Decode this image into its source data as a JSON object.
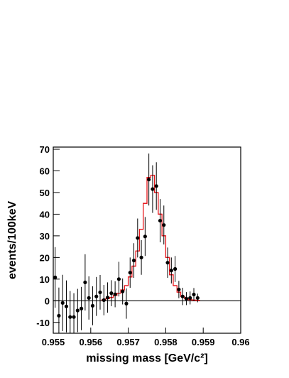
{
  "chart_data": {
    "type": "scatter",
    "x_label": "missing mass [GeV/c²]",
    "y_label": "events/100keV",
    "xlim": [
      0.955,
      0.96
    ],
    "xticks": [
      0.955,
      0.956,
      0.957,
      0.958,
      0.959,
      0.96
    ],
    "ylim": [
      -15,
      71
    ],
    "yticks": [
      -10,
      0,
      10,
      20,
      30,
      40,
      50,
      60,
      70
    ],
    "reference_line": 0,
    "points": {
      "color": "#000000",
      "x": [
        0.95505,
        0.95515,
        0.95525,
        0.95535,
        0.95545,
        0.95555,
        0.95565,
        0.95575,
        0.95585,
        0.95595,
        0.95605,
        0.95615,
        0.95625,
        0.95635,
        0.95645,
        0.95655,
        0.95665,
        0.95675,
        0.95685,
        0.95695,
        0.95705,
        0.95715,
        0.95725,
        0.95735,
        0.95745,
        0.95755,
        0.95765,
        0.95775,
        0.95785,
        0.95795,
        0.95805,
        0.95815,
        0.95825,
        0.95835,
        0.95845,
        0.95855,
        0.95865,
        0.95875,
        0.95885
      ],
      "values": [
        10.8,
        -6.9,
        -1,
        -2.6,
        -7.5,
        -7.5,
        -4.5,
        -3.6,
        8.5,
        1.3,
        -2.3,
        2,
        3.9,
        0.3,
        1.5,
        3.5,
        3,
        10,
        4.3,
        -1.3,
        13,
        18.6,
        29,
        20,
        29.7,
        56,
        51.6,
        53,
        37,
        35,
        17.6,
        14,
        14.7,
        5.2,
        2,
        1,
        1.3,
        2.9,
        1.3
      ],
      "errors": [
        14,
        13,
        13,
        12,
        12,
        11,
        10,
        10,
        13,
        10,
        9,
        9,
        8,
        7,
        7,
        6,
        6,
        8,
        6,
        7,
        7,
        8,
        9,
        8,
        9,
        12,
        11,
        11,
        10,
        9,
        7,
        6,
        6,
        4,
        4,
        3,
        3,
        3,
        2
      ]
    },
    "model": {
      "color": "#e8171c",
      "bins": [
        0.9563,
        0.9564,
        0.9565,
        0.9566,
        0.9567,
        0.9568,
        0.9569,
        0.957,
        0.9571,
        0.9572,
        0.9573,
        0.9574,
        0.9575,
        0.9576,
        0.9577,
        0.9578,
        0.9579,
        0.958,
        0.9581,
        0.9582,
        0.9583,
        0.9584,
        0.9585,
        0.9586,
        0.9587,
        0.9588,
        0.9589
      ],
      "counts": [
        0.5,
        1,
        1.5,
        2.5,
        3.5,
        5,
        7,
        11,
        16,
        23,
        33,
        45,
        57,
        58,
        50,
        40,
        30,
        20,
        12,
        7,
        4,
        2,
        1,
        0.5,
        0.3,
        0.2
      ]
    }
  }
}
